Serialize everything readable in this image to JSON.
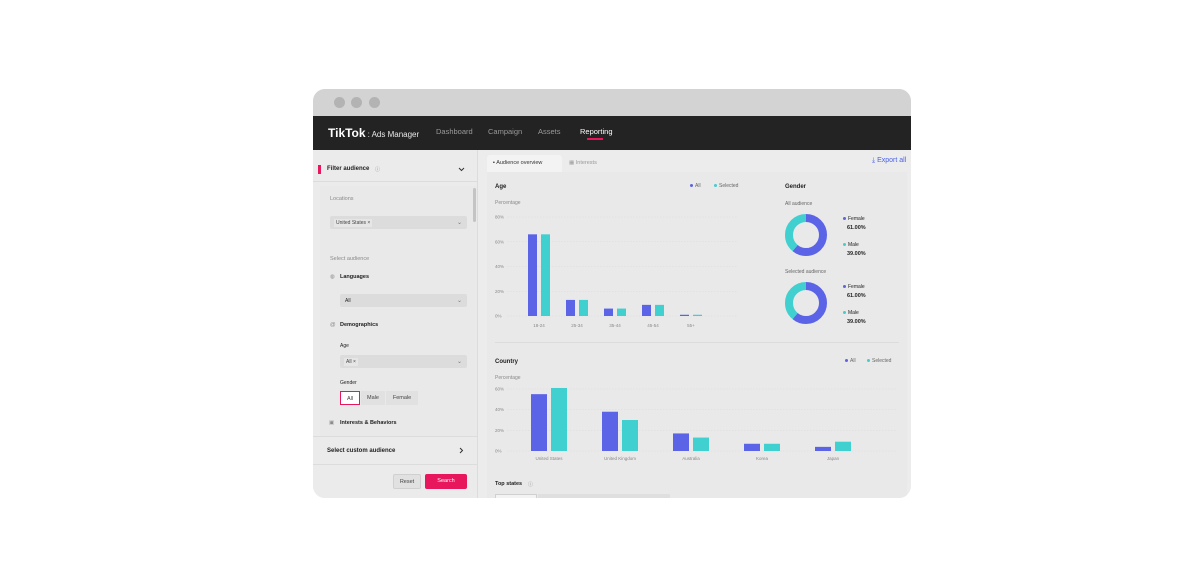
{
  "colors": {
    "all": "#5b63e6",
    "selected": "#3fd0cf",
    "accent": "#e8175d",
    "nav_bg": "#232323"
  },
  "app": {
    "brand": "TikTok",
    "product": ": Ads Manager"
  },
  "nav": {
    "items": [
      "Dashboard",
      "Campaign",
      "Assets",
      "Reporting"
    ],
    "active": "Reporting"
  },
  "sidebar": {
    "filter_title": "Filter audience",
    "locations_label": "Locations",
    "location_chip": "United States",
    "select_audience_label": "Select audience",
    "languages_label": "Languages",
    "languages_value": "All",
    "demographics_label": "Demographics",
    "age_label": "Age",
    "age_chip": "All",
    "gender_label": "Gender",
    "gender_options": [
      "All",
      "Male",
      "Female"
    ],
    "gender_selected": "All",
    "interests_label": "Interests & Behaviors",
    "custom_audience_label": "Select custom audience",
    "reset_label": "Reset",
    "search_label": "Search"
  },
  "tabs": [
    "Audience overview",
    "Interests"
  ],
  "export_label": "Export all",
  "legend": {
    "all": "All",
    "selected": "Selected"
  },
  "age": {
    "title": "Age",
    "ylabel": "Percentage"
  },
  "gender": {
    "title": "Gender",
    "all_audience_label": "All audience",
    "selected_audience_label": "Selected audience",
    "all_audience": [
      {
        "label": "Female",
        "value": "61.00%"
      },
      {
        "label": "Male",
        "value": "39.00%"
      }
    ],
    "selected_audience": [
      {
        "label": "Female",
        "value": "61.00%"
      },
      {
        "label": "Male",
        "value": "39.00%"
      }
    ]
  },
  "country": {
    "title": "Country",
    "ylabel": "Percentage"
  },
  "top_states_label": "Top states",
  "chart_data": [
    {
      "type": "bar",
      "title": "Age",
      "ylabel": "Percentage",
      "categories": [
        "18-24",
        "25-34",
        "35-44",
        "45-54",
        "55+"
      ],
      "series": [
        {
          "name": "All",
          "values": [
            66,
            13,
            6,
            9,
            1
          ]
        },
        {
          "name": "Selected",
          "values": [
            66,
            13,
            6,
            9,
            1
          ]
        }
      ],
      "yticks": [
        "0%",
        "20%",
        "40%",
        "60%",
        "80%"
      ],
      "ylim": [
        0,
        80
      ],
      "legend": "top-right"
    },
    {
      "type": "pie",
      "title": "All audience",
      "categories": [
        "Female",
        "Male"
      ],
      "values": [
        61,
        39
      ]
    },
    {
      "type": "pie",
      "title": "Selected audience",
      "categories": [
        "Female",
        "Male"
      ],
      "values": [
        61,
        39
      ]
    },
    {
      "type": "bar",
      "title": "Country",
      "ylabel": "Percentage",
      "categories": [
        "United States",
        "United Kingdom",
        "Australia",
        "Korea",
        "Japan"
      ],
      "series": [
        {
          "name": "All",
          "values": [
            55,
            38,
            17,
            7,
            4
          ]
        },
        {
          "name": "Selected",
          "values": [
            61,
            30,
            13,
            7,
            9
          ]
        }
      ],
      "yticks": [
        "0%",
        "20%",
        "40%",
        "60%"
      ],
      "ylim": [
        0,
        60
      ],
      "legend": "top-right"
    }
  ]
}
